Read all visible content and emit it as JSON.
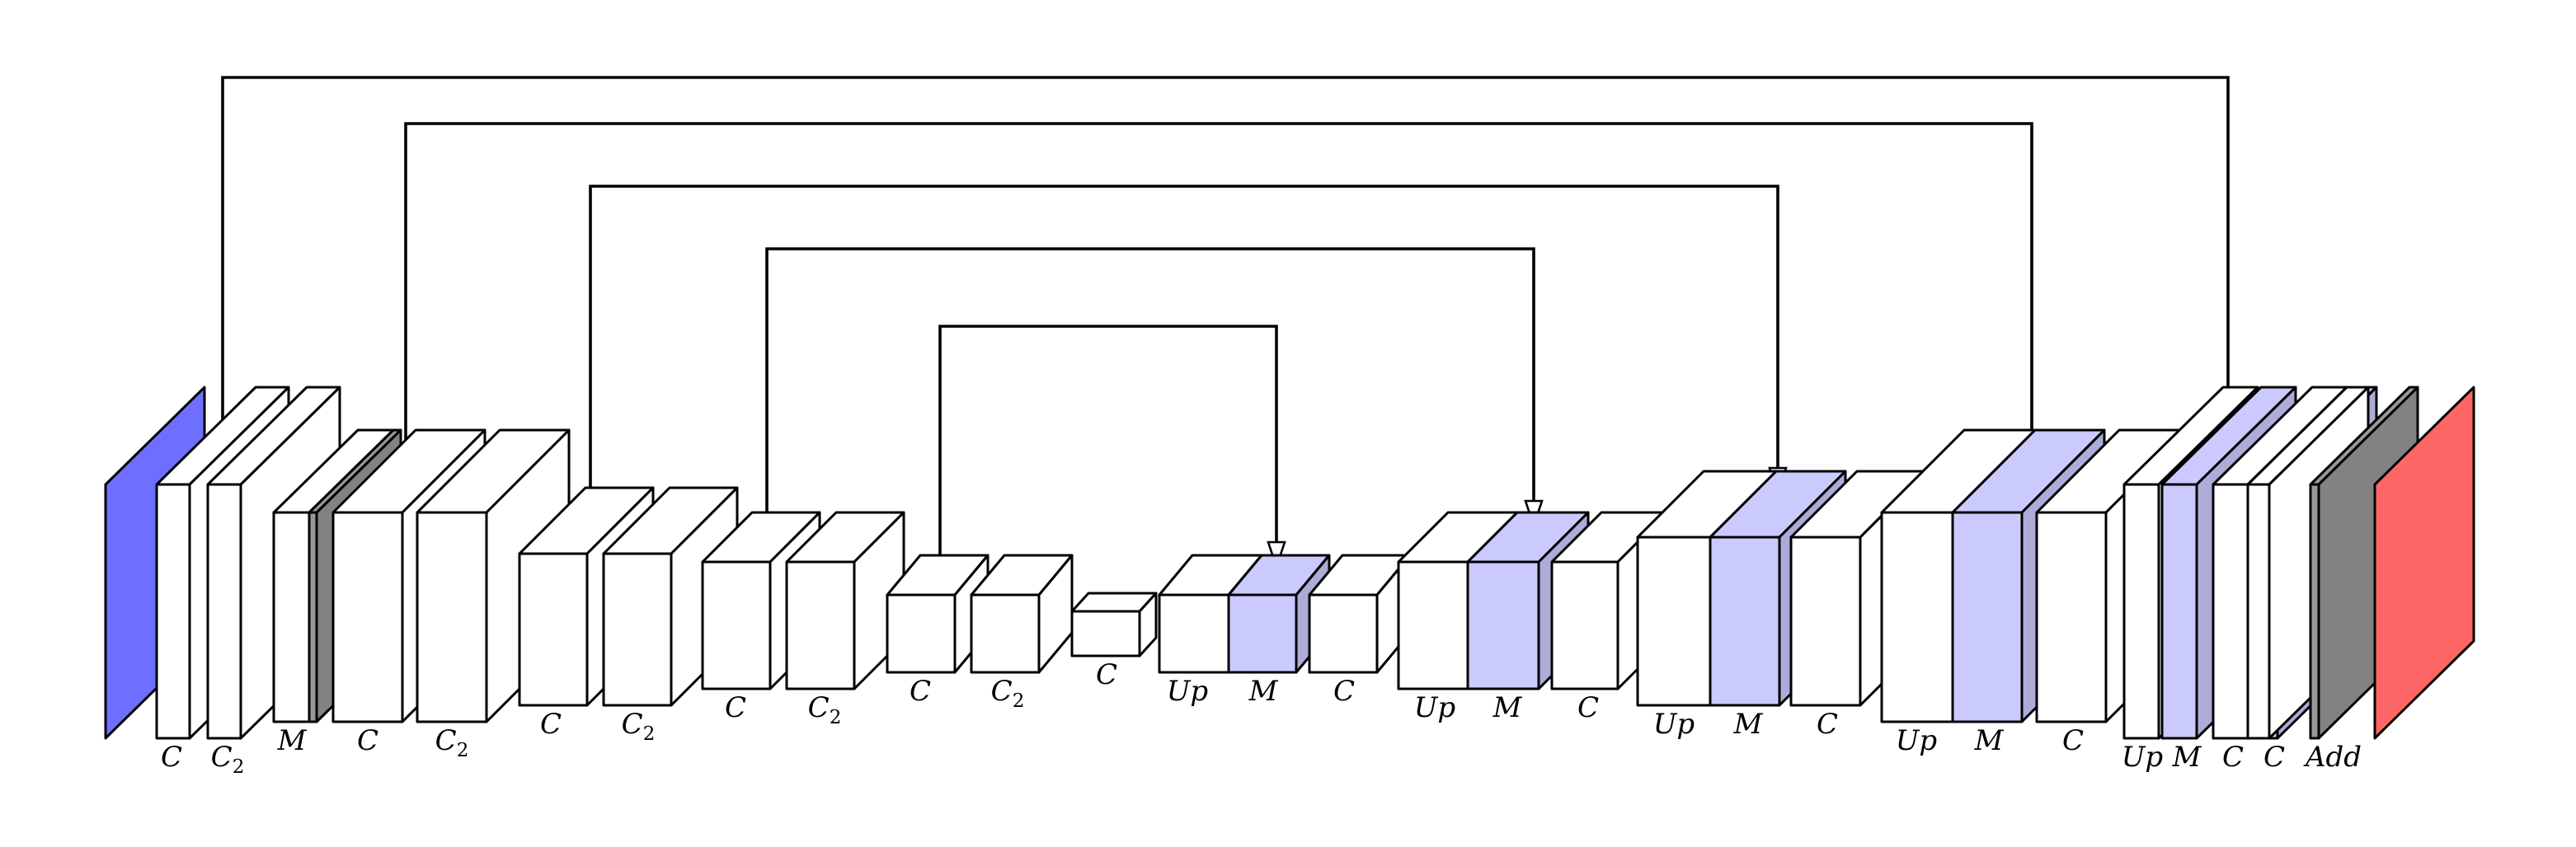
{
  "colors": {
    "input": "#6f6fff",
    "output": "#ff6666",
    "default": "#ffffff",
    "merge": "#cacaff",
    "dark": "#999999"
  },
  "blocks": [
    {
      "kind": "input",
      "label": ""
    },
    {
      "kind": "default",
      "label": "C"
    },
    {
      "kind": "default",
      "label": "C",
      "sub": "2"
    },
    {
      "kind": "default",
      "label": "M"
    },
    {
      "kind": "dark",
      "label": ""
    },
    {
      "kind": "default",
      "label": "C"
    },
    {
      "kind": "default",
      "label": "C",
      "sub": "2"
    },
    {
      "kind": "default",
      "label": "C"
    },
    {
      "kind": "default",
      "label": "C",
      "sub": "2"
    },
    {
      "kind": "default",
      "label": "C"
    },
    {
      "kind": "default",
      "label": "C",
      "sub": "2"
    },
    {
      "kind": "default",
      "label": "C"
    },
    {
      "kind": "default",
      "label": "C",
      "sub": "2"
    },
    {
      "kind": "default",
      "label": "C"
    },
    {
      "kind": "default",
      "label": "Up"
    },
    {
      "kind": "merge",
      "label": "M"
    },
    {
      "kind": "default",
      "label": "C"
    },
    {
      "kind": "default",
      "label": "Up"
    },
    {
      "kind": "merge",
      "label": "M"
    },
    {
      "kind": "default",
      "label": "C"
    },
    {
      "kind": "default",
      "label": "Up"
    },
    {
      "kind": "merge",
      "label": "M"
    },
    {
      "kind": "default",
      "label": "C"
    },
    {
      "kind": "default",
      "label": "Up"
    },
    {
      "kind": "merge",
      "label": "M"
    },
    {
      "kind": "default",
      "label": "C"
    },
    {
      "kind": "default",
      "label": "Up"
    },
    {
      "kind": "merge",
      "label": "M"
    },
    {
      "kind": "default",
      "label": "C"
    },
    {
      "kind": "merge",
      "label": ""
    },
    {
      "kind": "default",
      "label": "C"
    },
    {
      "kind": "dark",
      "label": ""
    },
    {
      "kind": "output",
      "label": "Add"
    }
  ],
  "skip_connections": [
    {
      "from_block": 1,
      "to_block": 27
    },
    {
      "from_block": 3,
      "to_block": 24
    },
    {
      "from_block": 7,
      "to_block": 21
    },
    {
      "from_block": 9,
      "to_block": 18
    },
    {
      "from_block": 11,
      "to_block": 15
    }
  ]
}
